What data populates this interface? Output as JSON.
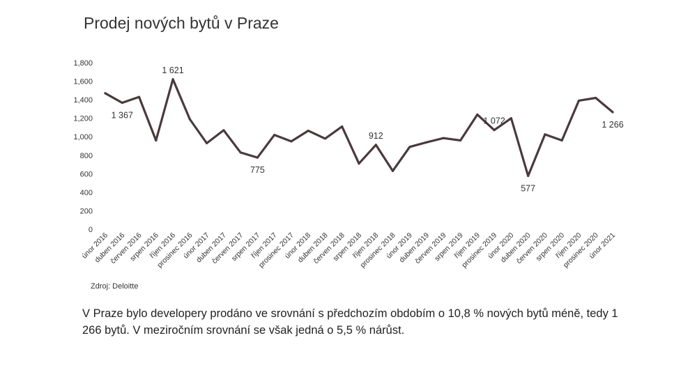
{
  "chart_data": {
    "type": "line",
    "title": "Prodej nových bytů v Praze",
    "xlabel": "",
    "ylabel": "",
    "ylim": [
      0,
      1800
    ],
    "yticks": [
      0,
      200,
      400,
      600,
      800,
      1000,
      1200,
      1400,
      1600,
      1800
    ],
    "grid": false,
    "legend": "none",
    "line_color": "#4a3a3d",
    "categories": [
      "únor 2016",
      "duben 2016",
      "červen 2016",
      "srpen 2016",
      "říjen 2016",
      "prosinec 2016",
      "únor 2017",
      "duben 2017",
      "červen 2017",
      "srpen 2017",
      "říjen 2017",
      "prosinec 2017",
      "únor 2018",
      "duben 2018",
      "červen 2018",
      "srpen 2018",
      "říjen 2018",
      "prosinec 2018",
      "únor 2019",
      "duben 2019",
      "červen 2019",
      "srpen 2019",
      "říjen 2019",
      "prosinec 2019",
      "únor 2020",
      "duben 2020",
      "červen 2020",
      "srpen 2020",
      "říjen 2020",
      "prosinec 2020",
      "únor 2021"
    ],
    "series": [
      {
        "values": [
          1470,
          1367,
          1430,
          960,
          1621,
          1190,
          930,
          1070,
          830,
          775,
          1020,
          950,
          1065,
          980,
          1110,
          710,
          912,
          630,
          890,
          940,
          985,
          960,
          1240,
          1072,
          1200,
          577,
          1025,
          960,
          1390,
          1420,
          1266
        ],
        "annotations": [
          {
            "index": 1,
            "text": "1 367",
            "pos": "below"
          },
          {
            "index": 4,
            "text": "1 621",
            "pos": "above"
          },
          {
            "index": 9,
            "text": "775",
            "pos": "below"
          },
          {
            "index": 16,
            "text": "912",
            "pos": "above"
          },
          {
            "index": 23,
            "text": "1 072",
            "pos": "above"
          },
          {
            "index": 25,
            "text": "577",
            "pos": "below"
          },
          {
            "index": 30,
            "text": "1 266",
            "pos": "below"
          }
        ]
      }
    ]
  },
  "source": "Zdroj: Deloitte",
  "note": "V Praze bylo developery prodáno ve srovnání s předchozím obdobím o 10,8 % nových bytů méně, tedy 1 266 bytů. V meziročním srovnání se však jedná o 5,5 % nárůst."
}
